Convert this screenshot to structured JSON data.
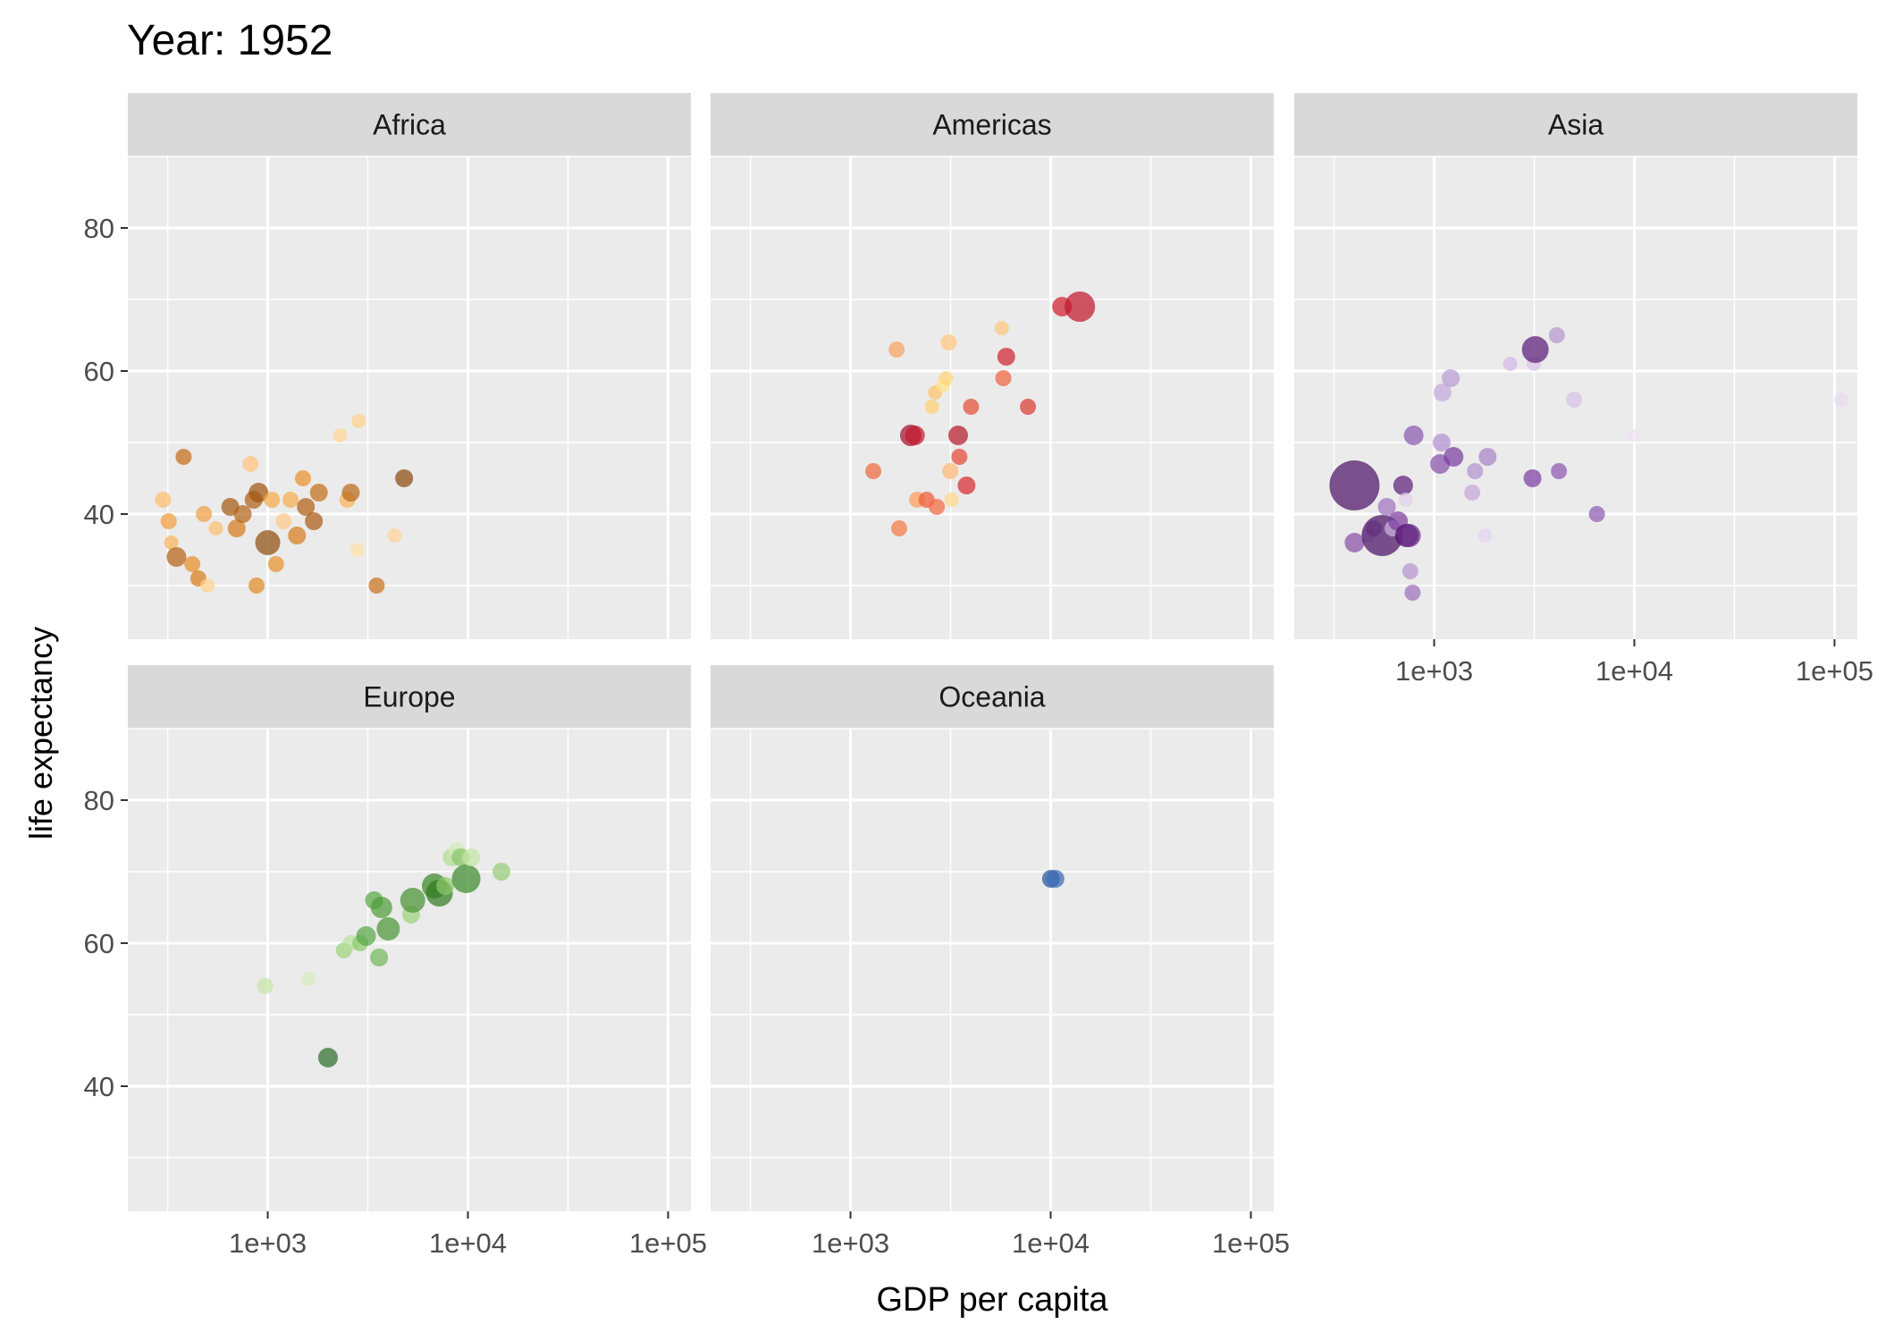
{
  "chart_data": {
    "type": "scatter",
    "title": "Year: 1952",
    "xlabel": "GDP per capita",
    "ylabel": "life expectancy",
    "x_scale": "log10",
    "xlim": [
      200,
      130000
    ],
    "ylim": [
      22.5,
      90
    ],
    "x_ticks": [
      {
        "value": 1000,
        "label": "1e+03"
      },
      {
        "value": 10000,
        "label": "1e+04"
      },
      {
        "value": 100000,
        "label": "1e+05"
      }
    ],
    "y_ticks": [
      {
        "value": 40,
        "label": "40"
      },
      {
        "value": 60,
        "label": "60"
      },
      {
        "value": 80,
        "label": "80"
      }
    ],
    "grid": true,
    "legend": "none",
    "colors": {
      "panel_background": "#ebebeb",
      "strip_background": "#d9d9d9",
      "grid": "#ffffff",
      "tick_text": "#4d4d4d",
      "title_text": "#000000"
    },
    "panels": [
      {
        "name": "Africa",
        "points": [
          {
            "x": 300,
            "y": 42,
            "size": 9,
            "color": "#fdbe6c"
          },
          {
            "x": 320,
            "y": 39,
            "size": 9,
            "color": "#f39c3b"
          },
          {
            "x": 330,
            "y": 36,
            "size": 8,
            "color": "#f8b45a"
          },
          {
            "x": 350,
            "y": 34,
            "size": 11,
            "color": "#b56316"
          },
          {
            "x": 380,
            "y": 48,
            "size": 9,
            "color": "#c36d18"
          },
          {
            "x": 420,
            "y": 33,
            "size": 9,
            "color": "#e88e28"
          },
          {
            "x": 450,
            "y": 31,
            "size": 9,
            "color": "#d87d1d"
          },
          {
            "x": 480,
            "y": 40,
            "size": 9,
            "color": "#f0a044"
          },
          {
            "x": 500,
            "y": 30,
            "size": 8,
            "color": "#ffd28a"
          },
          {
            "x": 550,
            "y": 38,
            "size": 8,
            "color": "#f9bf6e"
          },
          {
            "x": 650,
            "y": 41,
            "size": 10,
            "color": "#a45a10"
          },
          {
            "x": 700,
            "y": 38,
            "size": 10,
            "color": "#d57a1c"
          },
          {
            "x": 750,
            "y": 40,
            "size": 10,
            "color": "#b5651b"
          },
          {
            "x": 820,
            "y": 47,
            "size": 9,
            "color": "#fdc47c"
          },
          {
            "x": 850,
            "y": 42,
            "size": 10,
            "color": "#b05f16"
          },
          {
            "x": 880,
            "y": 30,
            "size": 9,
            "color": "#e08a22"
          },
          {
            "x": 900,
            "y": 43,
            "size": 11,
            "color": "#9f5610"
          },
          {
            "x": 1000,
            "y": 36,
            "size": 14,
            "color": "#8f4e0e"
          },
          {
            "x": 1050,
            "y": 42,
            "size": 9,
            "color": "#f6aa49"
          },
          {
            "x": 1100,
            "y": 33,
            "size": 9,
            "color": "#e7922c"
          },
          {
            "x": 1200,
            "y": 39,
            "size": 9,
            "color": "#fdc987"
          },
          {
            "x": 1300,
            "y": 42,
            "size": 9,
            "color": "#f6ad4e"
          },
          {
            "x": 1400,
            "y": 37,
            "size": 10,
            "color": "#d77b1d"
          },
          {
            "x": 1500,
            "y": 45,
            "size": 9,
            "color": "#e9922b"
          },
          {
            "x": 1550,
            "y": 41,
            "size": 10,
            "color": "#b25e13"
          },
          {
            "x": 1700,
            "y": 39,
            "size": 10,
            "color": "#a75b13"
          },
          {
            "x": 1800,
            "y": 43,
            "size": 10,
            "color": "#c36f19"
          },
          {
            "x": 2300,
            "y": 51,
            "size": 8,
            "color": "#ffd694"
          },
          {
            "x": 2500,
            "y": 42,
            "size": 9,
            "color": "#f7b35a"
          },
          {
            "x": 2600,
            "y": 43,
            "size": 10,
            "color": "#b9681a"
          },
          {
            "x": 2800,
            "y": 35,
            "size": 8,
            "color": "#ffe0a8"
          },
          {
            "x": 2850,
            "y": 53,
            "size": 8,
            "color": "#ffd08e"
          },
          {
            "x": 3500,
            "y": 30,
            "size": 9,
            "color": "#c9711a"
          },
          {
            "x": 4300,
            "y": 37,
            "size": 8,
            "color": "#ffd49a"
          },
          {
            "x": 4800,
            "y": 45,
            "size": 10,
            "color": "#8a4a0d"
          }
        ]
      },
      {
        "name": "Americas",
        "points": [
          {
            "x": 1300,
            "y": 46,
            "size": 9,
            "color": "#ef6a3c"
          },
          {
            "x": 1700,
            "y": 63,
            "size": 9,
            "color": "#f9a25e"
          },
          {
            "x": 1750,
            "y": 38,
            "size": 9,
            "color": "#f47a43"
          },
          {
            "x": 2000,
            "y": 51,
            "size": 12,
            "color": "#a50f2c"
          },
          {
            "x": 2100,
            "y": 51,
            "size": 11,
            "color": "#c31b31"
          },
          {
            "x": 2150,
            "y": 42,
            "size": 9,
            "color": "#fc9c57"
          },
          {
            "x": 2400,
            "y": 42,
            "size": 9,
            "color": "#ee5c3a"
          },
          {
            "x": 2550,
            "y": 55,
            "size": 8,
            "color": "#ffd06f"
          },
          {
            "x": 2650,
            "y": 57,
            "size": 8,
            "color": "#fec268"
          },
          {
            "x": 2700,
            "y": 41,
            "size": 9,
            "color": "#f26a3f"
          },
          {
            "x": 2900,
            "y": 58,
            "size": 8,
            "color": "#ffe38a"
          },
          {
            "x": 3000,
            "y": 59,
            "size": 8,
            "color": "#ffd67a"
          },
          {
            "x": 3100,
            "y": 64,
            "size": 9,
            "color": "#ffc67a"
          },
          {
            "x": 3150,
            "y": 46,
            "size": 9,
            "color": "#fdb872"
          },
          {
            "x": 3200,
            "y": 42,
            "size": 8,
            "color": "#fed58a"
          },
          {
            "x": 3450,
            "y": 51,
            "size": 11,
            "color": "#b51a2a"
          },
          {
            "x": 3500,
            "y": 48,
            "size": 9,
            "color": "#e44734"
          },
          {
            "x": 3800,
            "y": 44,
            "size": 10,
            "color": "#d42b2f"
          },
          {
            "x": 4000,
            "y": 55,
            "size": 9,
            "color": "#e24e34"
          },
          {
            "x": 5700,
            "y": 66,
            "size": 8,
            "color": "#fec67e"
          },
          {
            "x": 5800,
            "y": 59,
            "size": 9,
            "color": "#f0623e"
          },
          {
            "x": 6000,
            "y": 62,
            "size": 10,
            "color": "#cf2330"
          },
          {
            "x": 7700,
            "y": 55,
            "size": 9,
            "color": "#d93b30"
          },
          {
            "x": 11400,
            "y": 69,
            "size": 11,
            "color": "#cf1e2e"
          },
          {
            "x": 13990,
            "y": 69,
            "size": 17,
            "color": "#c0182c"
          }
        ]
      },
      {
        "name": "Asia",
        "points": [
          {
            "x": 400,
            "y": 36,
            "size": 11,
            "color": "#8b4fa6"
          },
          {
            "x": 400,
            "y": 44,
            "size": 28,
            "color": "#4c1266"
          },
          {
            "x": 470,
            "y": 37,
            "size": 8,
            "color": "#d2bbe1"
          },
          {
            "x": 500,
            "y": 38,
            "size": 9,
            "color": "#a57fc4"
          },
          {
            "x": 550,
            "y": 37,
            "size": 23,
            "color": "#4a1064"
          },
          {
            "x": 580,
            "y": 41,
            "size": 10,
            "color": "#9f73bc"
          },
          {
            "x": 620,
            "y": 38,
            "size": 9,
            "color": "#cdb4e0"
          },
          {
            "x": 660,
            "y": 39,
            "size": 11,
            "color": "#7d3fa0"
          },
          {
            "x": 700,
            "y": 44,
            "size": 11,
            "color": "#5d1e7a"
          },
          {
            "x": 720,
            "y": 42,
            "size": 8,
            "color": "#e1d0ec"
          },
          {
            "x": 730,
            "y": 37,
            "size": 13,
            "color": "#4d0d68"
          },
          {
            "x": 750,
            "y": 37,
            "size": 13,
            "color": "#6b2e8c"
          },
          {
            "x": 760,
            "y": 32,
            "size": 9,
            "color": "#b495ce"
          },
          {
            "x": 780,
            "y": 29,
            "size": 9,
            "color": "#9c6fb9"
          },
          {
            "x": 790,
            "y": 51,
            "size": 11,
            "color": "#8b57ae"
          },
          {
            "x": 1070,
            "y": 47,
            "size": 11,
            "color": "#8650ac"
          },
          {
            "x": 1090,
            "y": 50,
            "size": 10,
            "color": "#b290ce"
          },
          {
            "x": 1100,
            "y": 57,
            "size": 10,
            "color": "#c3a9db"
          },
          {
            "x": 1210,
            "y": 59,
            "size": 10,
            "color": "#b99bd2"
          },
          {
            "x": 1250,
            "y": 48,
            "size": 11,
            "color": "#7a3f9f"
          },
          {
            "x": 1550,
            "y": 43,
            "size": 9,
            "color": "#c3a6da"
          },
          {
            "x": 1600,
            "y": 46,
            "size": 9,
            "color": "#b291cd"
          },
          {
            "x": 1800,
            "y": 37,
            "size": 8,
            "color": "#e3d4ee"
          },
          {
            "x": 1850,
            "y": 48,
            "size": 10,
            "color": "#a683c6"
          },
          {
            "x": 2400,
            "y": 61,
            "size": 8,
            "color": "#d0b8e3"
          },
          {
            "x": 3100,
            "y": 45,
            "size": 10,
            "color": "#7b3ea0"
          },
          {
            "x": 3150,
            "y": 61,
            "size": 8,
            "color": "#d8c2e7"
          },
          {
            "x": 3200,
            "y": 63,
            "size": 15,
            "color": "#5a1b78"
          },
          {
            "x": 4100,
            "y": 65,
            "size": 9,
            "color": "#b596cf"
          },
          {
            "x": 4200,
            "y": 46,
            "size": 9,
            "color": "#8c58b0"
          },
          {
            "x": 5000,
            "y": 56,
            "size": 9,
            "color": "#d7c1e8"
          },
          {
            "x": 6500,
            "y": 40,
            "size": 9,
            "color": "#8d5db1"
          },
          {
            "x": 9900,
            "y": 51,
            "size": 7,
            "color": "#ede2f3"
          },
          {
            "x": 108000,
            "y": 56,
            "size": 8,
            "color": "#e7d9f0"
          }
        ]
      },
      {
        "name": "Europe",
        "points": [
          {
            "x": 970,
            "y": 54,
            "size": 9,
            "color": "#c5e4a4"
          },
          {
            "x": 1600,
            "y": 55,
            "size": 8,
            "color": "#d7ecbe"
          },
          {
            "x": 2000,
            "y": 44,
            "size": 11,
            "color": "#2f6e2f"
          },
          {
            "x": 2400,
            "y": 59,
            "size": 9,
            "color": "#9ed37f"
          },
          {
            "x": 2600,
            "y": 60,
            "size": 9,
            "color": "#b9e19b"
          },
          {
            "x": 2900,
            "y": 60,
            "size": 9,
            "color": "#8dc96c"
          },
          {
            "x": 3100,
            "y": 61,
            "size": 11,
            "color": "#58a845"
          },
          {
            "x": 3400,
            "y": 66,
            "size": 10,
            "color": "#59a945"
          },
          {
            "x": 3600,
            "y": 58,
            "size": 10,
            "color": "#72b85a"
          },
          {
            "x": 3700,
            "y": 65,
            "size": 12,
            "color": "#4f9d3b"
          },
          {
            "x": 4000,
            "y": 62,
            "size": 13,
            "color": "#4b9637"
          },
          {
            "x": 5200,
            "y": 64,
            "size": 10,
            "color": "#9bd27e"
          },
          {
            "x": 5300,
            "y": 66,
            "size": 14,
            "color": "#4a9134"
          },
          {
            "x": 6800,
            "y": 68,
            "size": 14,
            "color": "#3a8628"
          },
          {
            "x": 7200,
            "y": 67,
            "size": 15,
            "color": "#2f7b1f"
          },
          {
            "x": 7700,
            "y": 68,
            "size": 10,
            "color": "#8cc96b"
          },
          {
            "x": 8300,
            "y": 72,
            "size": 10,
            "color": "#b1dd93"
          },
          {
            "x": 8800,
            "y": 73,
            "size": 9,
            "color": "#d3ecb8"
          },
          {
            "x": 9200,
            "y": 72,
            "size": 10,
            "color": "#87c568"
          },
          {
            "x": 9800,
            "y": 69,
            "size": 16,
            "color": "#3c8a2a"
          },
          {
            "x": 10400,
            "y": 72,
            "size": 10,
            "color": "#c2e4a3"
          },
          {
            "x": 14700,
            "y": 70,
            "size": 10,
            "color": "#95cd77"
          }
        ]
      },
      {
        "name": "Oceania",
        "points": [
          {
            "x": 10040,
            "y": 69,
            "size": 10,
            "color": "#27549e"
          },
          {
            "x": 10560,
            "y": 69,
            "size": 10,
            "color": "#3b6cb4"
          }
        ]
      }
    ]
  }
}
